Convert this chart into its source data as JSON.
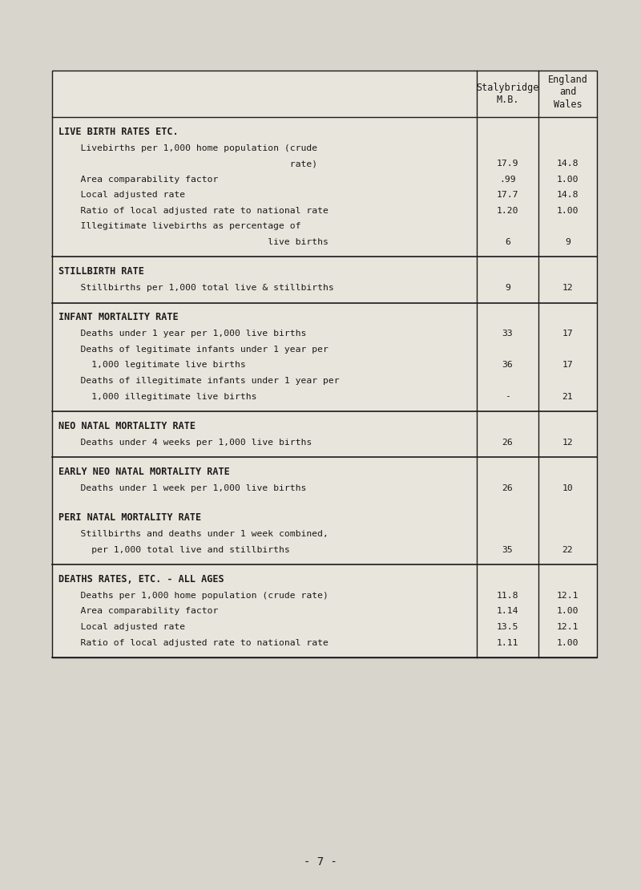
{
  "bg_color": "#d8d5cc",
  "table_bg": "#e8e5dc",
  "border_color": "#1a1a1a",
  "text_color": "#1a1a1a",
  "page_number": "- 7 -",
  "col1_header": "Stalybridge\nM.B.",
  "col2_header": "England\nand\nWales",
  "sections": [
    {
      "title": "LIVE BIRTH RATES ETC.",
      "rows": [
        {
          "lines": [
            "    Livebirths per 1,000 home population (crude",
            "                                          rate)"
          ],
          "val1": "17.9",
          "val2": "14.8"
        },
        {
          "lines": [
            "    Area comparability factor"
          ],
          "val1": ".99",
          "val2": "1.00"
        },
        {
          "lines": [
            "    Local adjusted rate"
          ],
          "val1": "17.7",
          "val2": "14.8"
        },
        {
          "lines": [
            "    Ratio of local adjusted rate to national rate"
          ],
          "val1": "1.20",
          "val2": "1.00"
        },
        {
          "lines": [
            "    Illegitimate livebirths as percentage of",
            "                                      live births"
          ],
          "val1": "6",
          "val2": "9"
        }
      ],
      "border_bottom": true
    },
    {
      "title": "STILLBIRTH RATE",
      "rows": [
        {
          "lines": [
            "    Stillbirths per 1,000 total live & stillbirths"
          ],
          "val1": "9",
          "val2": "12"
        }
      ],
      "border_bottom": true
    },
    {
      "title": "INFANT MORTALITY RATE",
      "rows": [
        {
          "lines": [
            "    Deaths under 1 year per 1,000 live births"
          ],
          "val1": "33",
          "val2": "17"
        },
        {
          "lines": [
            "    Deaths of legitimate infants under 1 year per",
            "      1,000 legitimate live births"
          ],
          "val1": "36",
          "val2": "17"
        },
        {
          "lines": [
            "    Deaths of illegitimate infants under 1 year per",
            "      1,000 illegitimate live births"
          ],
          "val1": "-",
          "val2": "21"
        }
      ],
      "border_bottom": true
    },
    {
      "title": "NEO NATAL MORTALITY RATE",
      "rows": [
        {
          "lines": [
            "    Deaths under 4 weeks per 1,000 live births"
          ],
          "val1": "26",
          "val2": "12"
        }
      ],
      "border_bottom": true
    },
    {
      "title": "EARLY NEO NATAL MORTALITY RATE",
      "rows": [
        {
          "lines": [
            "    Deaths under 1 week per 1,000 live births"
          ],
          "val1": "26",
          "val2": "10"
        }
      ],
      "border_bottom": false
    },
    {
      "title": "PERI NATAL MORTALITY RATE",
      "rows": [
        {
          "lines": [
            "    Stillbirths and deaths under 1 week combined,",
            "      per 1,000 total live and stillbirths"
          ],
          "val1": "35",
          "val2": "22"
        }
      ],
      "border_bottom": true
    },
    {
      "title": "DEATHS RATES, ETC. - ALL AGES",
      "rows": [
        {
          "lines": [
            "    Deaths per 1,000 home population (crude rate)"
          ],
          "val1": "11.8",
          "val2": "12.1"
        },
        {
          "lines": [
            "    Area comparability factor"
          ],
          "val1": "1.14",
          "val2": "1.00"
        },
        {
          "lines": [
            "    Local adjusted rate"
          ],
          "val1": "13.5",
          "val2": "12.1"
        },
        {
          "lines": [
            "    Ratio of local adjusted rate to national rate"
          ],
          "val1": "1.11",
          "val2": "1.00"
        }
      ],
      "border_bottom": true
    }
  ]
}
